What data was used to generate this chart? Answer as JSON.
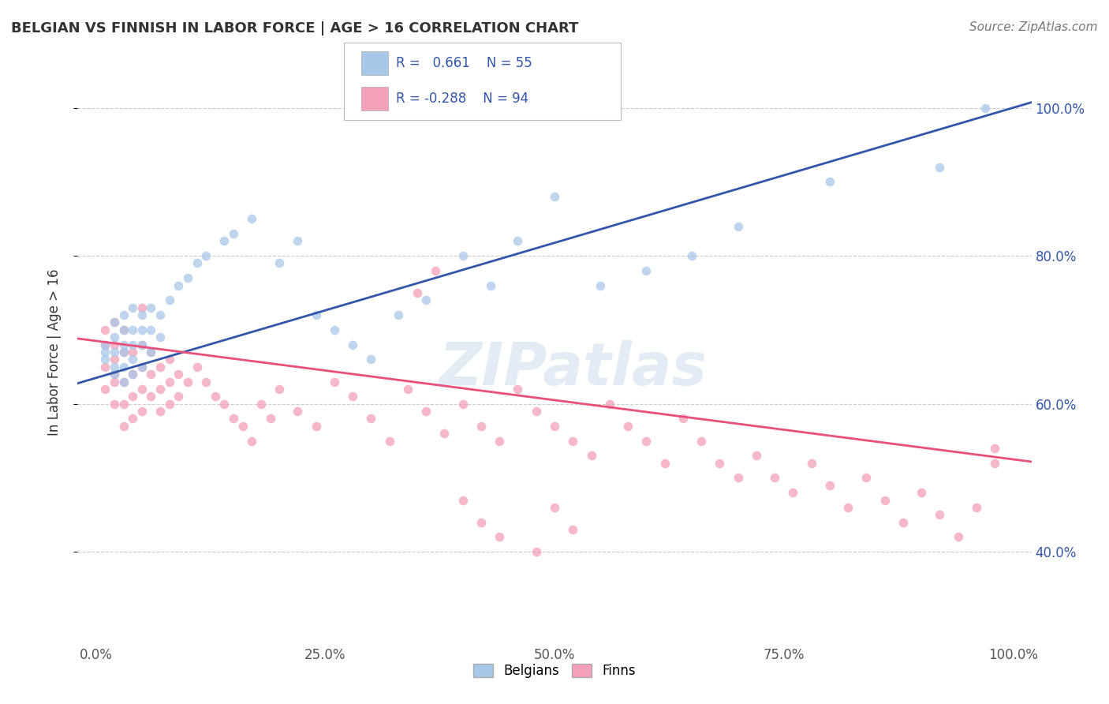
{
  "title": "BELGIAN VS FINNISH IN LABOR FORCE | AGE > 16 CORRELATION CHART",
  "source_text": "Source: ZipAtlas.com",
  "ylabel": "In Labor Force | Age > 16",
  "xlim": [
    -0.02,
    1.02
  ],
  "ylim": [
    0.28,
    1.06
  ],
  "xticks": [
    0.0,
    0.25,
    0.5,
    0.75,
    1.0
  ],
  "xtick_labels": [
    "0.0%",
    "25.0%",
    "50.0%",
    "75.0%",
    "100.0%"
  ],
  "ytick_labels": [
    "40.0%",
    "60.0%",
    "80.0%",
    "100.0%"
  ],
  "ytick_values": [
    0.4,
    0.6,
    0.8,
    1.0
  ],
  "belgian_R": "0.661",
  "belgian_N": "55",
  "finnish_R": "-0.288",
  "finnish_N": "94",
  "belgian_color": "#A8C8E8",
  "finnish_color": "#F4A0B8",
  "belgian_line_color": "#3355AA",
  "finnish_line_color": "#E8507A",
  "watermark": "ZIPatlas",
  "legend_labels": [
    "Belgians",
    "Finns"
  ],
  "belgian_x": [
    0.01,
    0.01,
    0.01,
    0.02,
    0.02,
    0.02,
    0.02,
    0.02,
    0.03,
    0.03,
    0.03,
    0.03,
    0.03,
    0.03,
    0.04,
    0.04,
    0.04,
    0.04,
    0.04,
    0.05,
    0.05,
    0.05,
    0.05,
    0.06,
    0.06,
    0.06,
    0.07,
    0.07,
    0.08,
    0.09,
    0.1,
    0.11,
    0.12,
    0.14,
    0.15,
    0.17,
    0.2,
    0.22,
    0.24,
    0.26,
    0.28,
    0.3,
    0.33,
    0.36,
    0.4,
    0.43,
    0.46,
    0.5,
    0.55,
    0.6,
    0.65,
    0.7,
    0.8,
    0.92,
    0.97
  ],
  "belgian_y": [
    0.66,
    0.67,
    0.68,
    0.64,
    0.65,
    0.67,
    0.69,
    0.71,
    0.63,
    0.65,
    0.67,
    0.68,
    0.7,
    0.72,
    0.64,
    0.66,
    0.68,
    0.7,
    0.73,
    0.65,
    0.68,
    0.7,
    0.72,
    0.67,
    0.7,
    0.73,
    0.69,
    0.72,
    0.74,
    0.76,
    0.77,
    0.79,
    0.8,
    0.82,
    0.83,
    0.85,
    0.79,
    0.82,
    0.72,
    0.7,
    0.68,
    0.66,
    0.72,
    0.74,
    0.8,
    0.76,
    0.82,
    0.88,
    0.76,
    0.78,
    0.8,
    0.84,
    0.9,
    0.92,
    1.0
  ],
  "finnish_x": [
    0.01,
    0.01,
    0.01,
    0.01,
    0.02,
    0.02,
    0.02,
    0.02,
    0.02,
    0.02,
    0.03,
    0.03,
    0.03,
    0.03,
    0.03,
    0.04,
    0.04,
    0.04,
    0.04,
    0.05,
    0.05,
    0.05,
    0.05,
    0.05,
    0.06,
    0.06,
    0.06,
    0.07,
    0.07,
    0.07,
    0.08,
    0.08,
    0.08,
    0.09,
    0.09,
    0.1,
    0.11,
    0.12,
    0.13,
    0.14,
    0.15,
    0.16,
    0.17,
    0.18,
    0.19,
    0.2,
    0.22,
    0.24,
    0.26,
    0.28,
    0.3,
    0.32,
    0.34,
    0.36,
    0.38,
    0.4,
    0.42,
    0.44,
    0.46,
    0.48,
    0.5,
    0.52,
    0.54,
    0.56,
    0.58,
    0.6,
    0.62,
    0.64,
    0.66,
    0.68,
    0.7,
    0.72,
    0.74,
    0.76,
    0.78,
    0.8,
    0.82,
    0.84,
    0.86,
    0.88,
    0.9,
    0.92,
    0.94,
    0.96,
    0.98,
    0.5,
    0.52,
    0.48,
    0.35,
    0.37,
    0.4,
    0.42,
    0.44,
    0.98
  ],
  "finnish_y": [
    0.68,
    0.65,
    0.62,
    0.7,
    0.66,
    0.63,
    0.6,
    0.68,
    0.71,
    0.64,
    0.67,
    0.63,
    0.6,
    0.57,
    0.7,
    0.67,
    0.64,
    0.61,
    0.58,
    0.68,
    0.65,
    0.62,
    0.59,
    0.73,
    0.67,
    0.64,
    0.61,
    0.65,
    0.62,
    0.59,
    0.66,
    0.63,
    0.6,
    0.64,
    0.61,
    0.63,
    0.65,
    0.63,
    0.61,
    0.6,
    0.58,
    0.57,
    0.55,
    0.6,
    0.58,
    0.62,
    0.59,
    0.57,
    0.63,
    0.61,
    0.58,
    0.55,
    0.62,
    0.59,
    0.56,
    0.6,
    0.57,
    0.55,
    0.62,
    0.59,
    0.57,
    0.55,
    0.53,
    0.6,
    0.57,
    0.55,
    0.52,
    0.58,
    0.55,
    0.52,
    0.5,
    0.53,
    0.5,
    0.48,
    0.52,
    0.49,
    0.46,
    0.5,
    0.47,
    0.44,
    0.48,
    0.45,
    0.42,
    0.46,
    0.54,
    0.46,
    0.43,
    0.4,
    0.75,
    0.78,
    0.47,
    0.44,
    0.42,
    0.52
  ]
}
